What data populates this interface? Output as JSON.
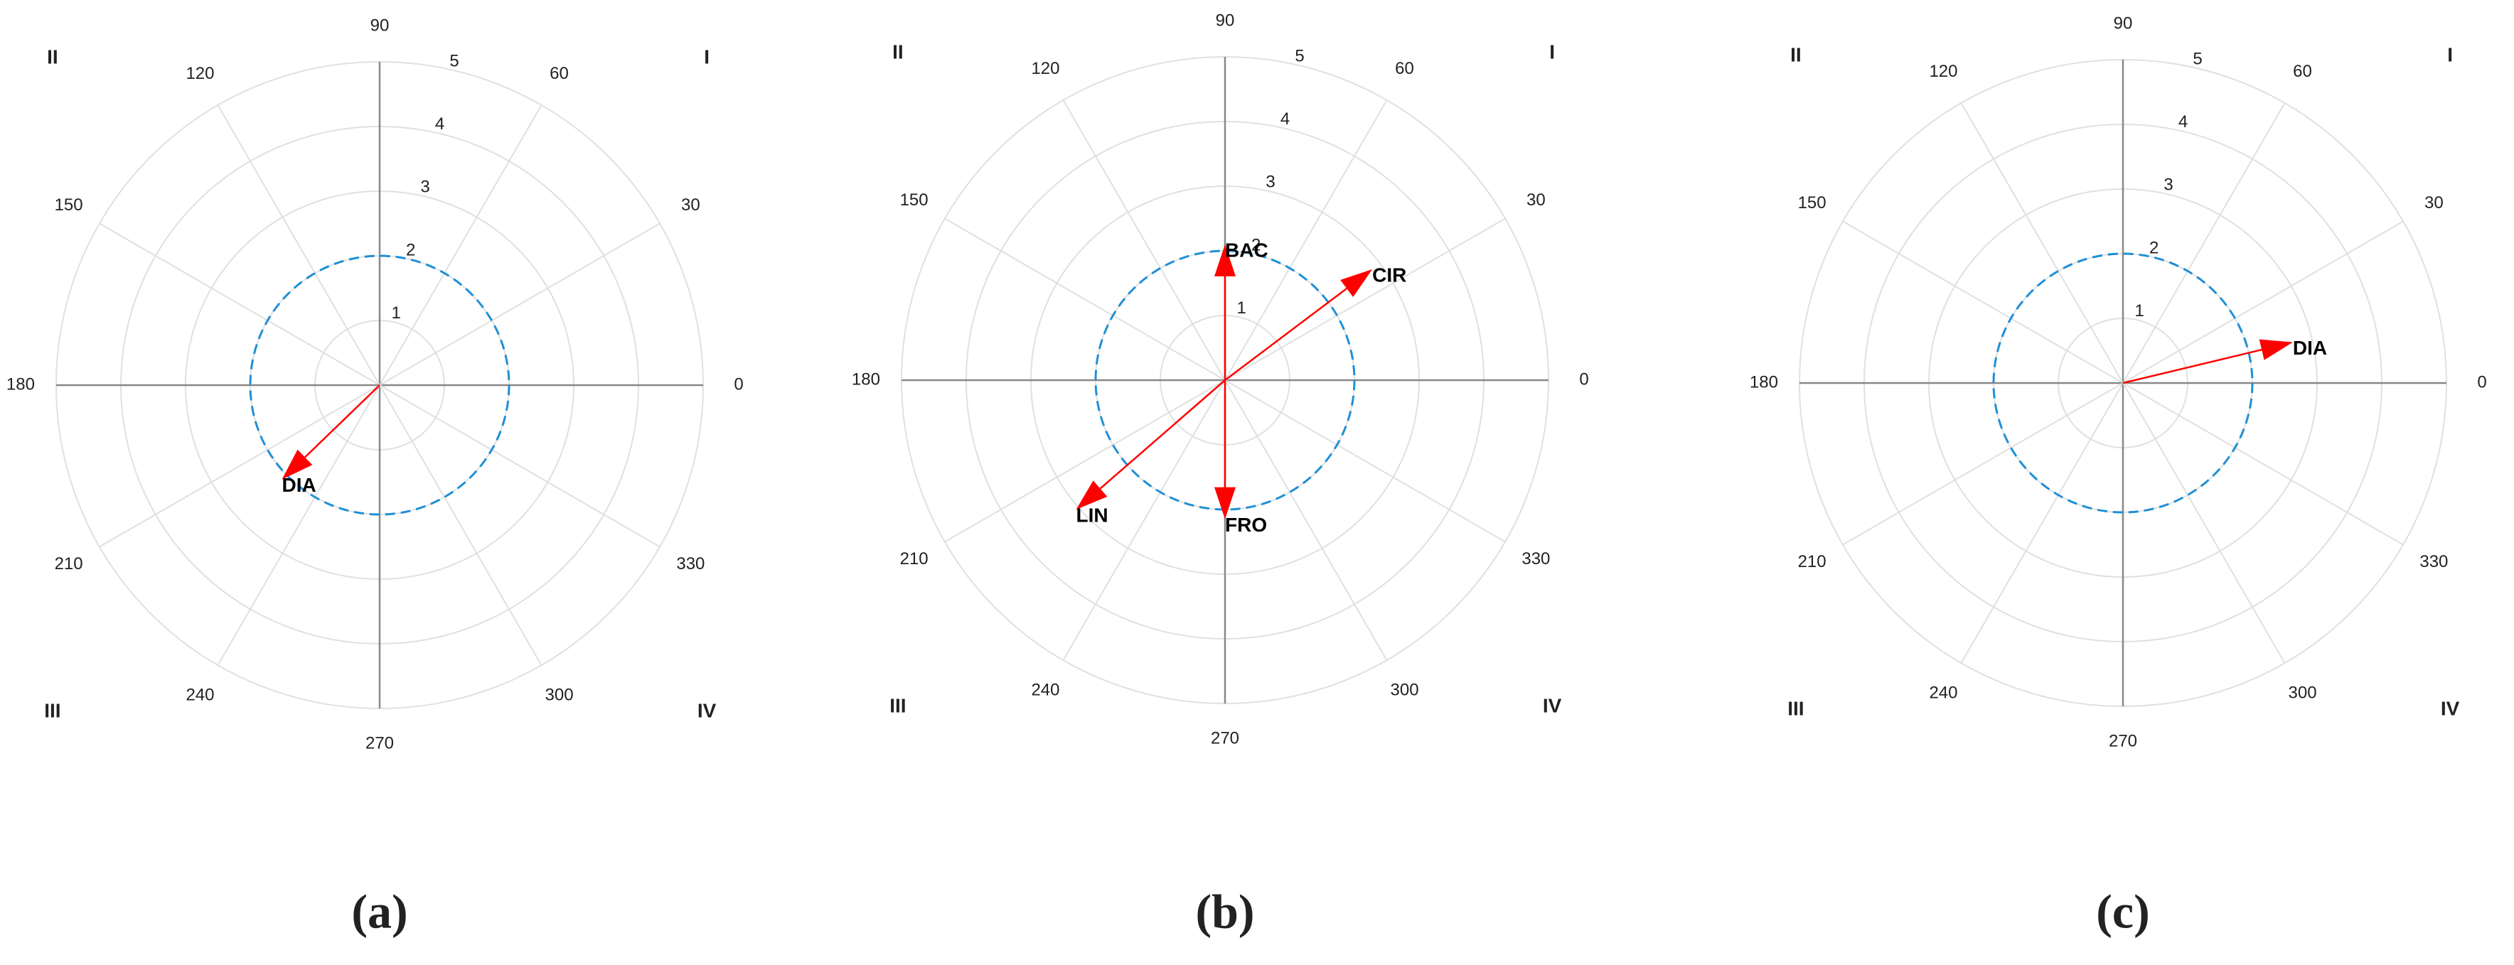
{
  "chart_data": [
    {
      "type": "polar",
      "caption": "(a)",
      "thetaticks": [
        0,
        30,
        60,
        90,
        120,
        150,
        180,
        210,
        240,
        270,
        300,
        330
      ],
      "rlim": [
        0,
        5
      ],
      "rticks": [
        1,
        2,
        3,
        4,
        5
      ],
      "reference_circle": 2,
      "reference_color": "#1f8fd6",
      "quadrants": [
        "I",
        "II",
        "III",
        "IV"
      ],
      "vectors": [
        {
          "name": "DIA",
          "angle": 224,
          "magnitude": 2.1,
          "color": "#ff0000"
        }
      ]
    },
    {
      "type": "polar",
      "caption": "(b)",
      "thetaticks": [
        0,
        30,
        60,
        90,
        120,
        150,
        180,
        210,
        240,
        270,
        300,
        330
      ],
      "rlim": [
        0,
        5
      ],
      "rticks": [
        1,
        2,
        3,
        4,
        5
      ],
      "reference_circle": 2,
      "reference_color": "#1f8fd6",
      "quadrants": [
        "I",
        "II",
        "III",
        "IV"
      ],
      "vectors": [
        {
          "name": "BAC",
          "angle": 90,
          "magnitude": 2.1,
          "color": "#ff0000"
        },
        {
          "name": "CIR",
          "angle": 37,
          "magnitude": 2.85,
          "color": "#ff0000"
        },
        {
          "name": "LIN",
          "angle": 221,
          "magnitude": 3.05,
          "color": "#ff0000"
        },
        {
          "name": "FRO",
          "angle": 270,
          "magnitude": 2.15,
          "color": "#ff0000"
        }
      ]
    },
    {
      "type": "polar",
      "caption": "(c)",
      "thetaticks": [
        0,
        30,
        60,
        90,
        120,
        150,
        180,
        210,
        240,
        270,
        300,
        330
      ],
      "rlim": [
        0,
        5
      ],
      "rticks": [
        1,
        2,
        3,
        4,
        5
      ],
      "reference_circle": 2,
      "reference_color": "#1f8fd6",
      "quadrants": [
        "I",
        "II",
        "III",
        "IV"
      ],
      "vectors": [
        {
          "name": "DIA",
          "angle": 13.5,
          "magnitude": 2.7,
          "color": "#ff0000"
        }
      ]
    }
  ]
}
